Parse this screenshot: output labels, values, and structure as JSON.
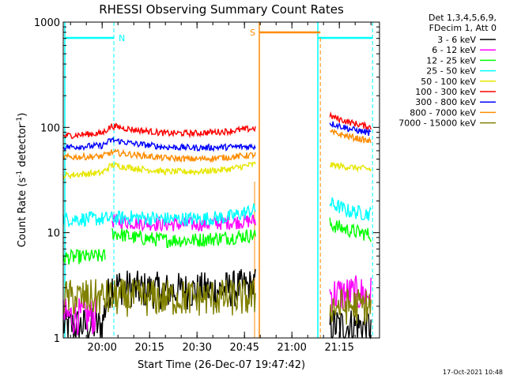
{
  "chart_data": {
    "type": "line",
    "title": "RHESSI Observing Summary Count Rates",
    "xlabel": "Start Time (26-Dec-07 19:47:42)",
    "ylabel_main": "Count Rate (s",
    "ylabel_sup1": "-1",
    "ylabel_mid": " detector",
    "ylabel_sup2": "-1",
    "ylabel_end": ")",
    "y_scale": "log",
    "ylim": [
      1,
      1000
    ],
    "xlim": [
      "19:47:42",
      "21:27:42"
    ],
    "x_ticks": [
      "20:00",
      "20:15",
      "20:30",
      "20:45",
      "21:00",
      "21:15"
    ],
    "y_ticks": [
      "1",
      "10",
      "100",
      "1000"
    ],
    "legend_header": [
      "Det 1,3,4,5,6,9,",
      "FDecim 1, Att 0"
    ],
    "legend_placement": "outside-right",
    "series": [
      {
        "name": "3 - 6 keV",
        "color": "#000000",
        "segments": [
          {
            "t": [
              "19:47:42",
              "20:00:00",
              "20:03:00",
              "20:10:00",
              "20:20:00",
              "20:30:00",
              "20:40:00",
              "20:48:30"
            ],
            "v": [
              1.3,
              1.3,
              3.2,
              2.9,
              2.8,
              2.8,
              2.9,
              3.1
            ]
          },
          {
            "t": [
              "21:12:00",
              "21:25:00"
            ],
            "v": [
              1.3,
              1.3
            ]
          }
        ]
      },
      {
        "name": "6 - 12 keV",
        "color": "#ff00ff",
        "segments": [
          {
            "t": [
              "19:47:42",
              "19:58:00"
            ],
            "v": [
              1.6,
              1.6
            ]
          },
          {
            "t": [
              "20:03:00",
              "20:10:00",
              "20:20:00",
              "20:30:00",
              "20:40:00",
              "20:48:30"
            ],
            "v": [
              13.0,
              12.5,
              12.0,
              12.0,
              12.5,
              13.0
            ]
          },
          {
            "t": [
              "21:12:00",
              "21:25:00"
            ],
            "v": [
              2.6,
              2.6
            ]
          }
        ]
      },
      {
        "name": "12 - 25 keV",
        "color": "#00ff00",
        "segments": [
          {
            "t": [
              "19:47:42",
              "20:01:00"
            ],
            "v": [
              5.8,
              6.0
            ]
          },
          {
            "t": [
              "20:03:00",
              "20:10:00",
              "20:20:00",
              "20:30:00",
              "20:40:00",
              "20:48:30"
            ],
            "v": [
              10.0,
              9.0,
              8.5,
              8.5,
              9.0,
              9.5
            ]
          },
          {
            "t": [
              "21:12:00",
              "21:18:00",
              "21:25:00"
            ],
            "v": [
              12.0,
              10.5,
              9.5
            ]
          }
        ]
      },
      {
        "name": "25 - 50 keV",
        "color": "#00ffff",
        "segments": [
          {
            "t": [
              "19:47:42",
              "20:00:00",
              "20:10:00",
              "20:20:00",
              "20:30:00",
              "20:40:00",
              "20:48:30"
            ],
            "v": [
              13.5,
              13.5,
              14.0,
              13.5,
              13.5,
              14.0,
              16.5
            ]
          },
          {
            "t": [
              "21:12:00",
              "21:18:00",
              "21:25:00"
            ],
            "v": [
              19.0,
              16.0,
              15.0
            ]
          }
        ]
      },
      {
        "name": "50 - 100 keV",
        "color": "#e6e600",
        "segments": [
          {
            "t": [
              "19:47:42",
              "20:00:00",
              "20:03:00",
              "20:10:00",
              "20:20:00",
              "20:30:00",
              "20:40:00",
              "20:48:30"
            ],
            "v": [
              35.0,
              37.0,
              44.0,
              41.0,
              38.0,
              38.0,
              40.0,
              45.0
            ]
          },
          {
            "t": [
              "21:12:00",
              "21:18:00",
              "21:25:00"
            ],
            "v": [
              44.0,
              42.0,
              40.0
            ]
          }
        ]
      },
      {
        "name": "100 - 300 keV",
        "color": "#ff0000",
        "segments": [
          {
            "t": [
              "19:47:42",
              "20:00:00",
              "20:03:00",
              "20:10:00",
              "20:20:00",
              "20:30:00",
              "20:40:00",
              "20:48:30"
            ],
            "v": [
              83.0,
              88.0,
              103.0,
              95.0,
              88.0,
              88.0,
              92.0,
              98.0
            ]
          },
          {
            "t": [
              "21:12:00",
              "21:18:00",
              "21:25:00"
            ],
            "v": [
              128.0,
              112.0,
              100.0
            ]
          }
        ]
      },
      {
        "name": "300 - 800 keV",
        "color": "#0000ff",
        "segments": [
          {
            "t": [
              "19:47:42",
              "20:00:00",
              "20:03:00",
              "20:10:00",
              "20:20:00",
              "20:30:00",
              "20:40:00",
              "20:48:30"
            ],
            "v": [
              65.0,
              67.0,
              76.0,
              70.0,
              65.0,
              64.0,
              65.0,
              66.0
            ]
          },
          {
            "t": [
              "21:12:00",
              "21:18:00",
              "21:25:00"
            ],
            "v": [
              110.0,
              97.0,
              88.0
            ]
          }
        ]
      },
      {
        "name": "800 - 7000 keV",
        "color": "#ff8c00",
        "segments": [
          {
            "t": [
              "19:47:42",
              "20:00:00",
              "20:03:00",
              "20:10:00",
              "20:20:00",
              "20:30:00",
              "20:40:00",
              "20:48:30"
            ],
            "v": [
              52.0,
              53.0,
              58.0,
              55.0,
              51.0,
              50.0,
              52.0,
              55.0
            ]
          },
          {
            "t": [
              "21:12:00",
              "21:18:00",
              "21:25:00"
            ],
            "v": [
              90.0,
              82.0,
              73.0
            ]
          }
        ]
      },
      {
        "name": "7000 - 15000 keV",
        "color": "#808000",
        "segments": [
          {
            "t": [
              "19:47:42",
              "20:04:00",
              "20:10:00",
              "20:20:00",
              "20:30:00",
              "20:40:00",
              "20:48:30"
            ],
            "v": [
              2.4,
              2.4,
              2.4,
              2.4,
              2.4,
              2.4,
              2.4
            ]
          },
          {
            "t": [
              "21:12:00",
              "21:25:00"
            ],
            "v": [
              2.0,
              2.0
            ]
          }
        ]
      }
    ],
    "annotations": {
      "night_label": "N",
      "night_color": "#00ffff",
      "night_intervals": [
        [
          "19:47:42",
          "20:03:42"
        ],
        [
          "21:07:42",
          "21:25:30"
        ]
      ],
      "saa_label": "S",
      "saa_color": "#ff8c00",
      "saa_intervals": [
        [
          "20:49:42",
          "21:09:00"
        ]
      ]
    },
    "footer_date": "17-Oct-2021 10:48"
  }
}
